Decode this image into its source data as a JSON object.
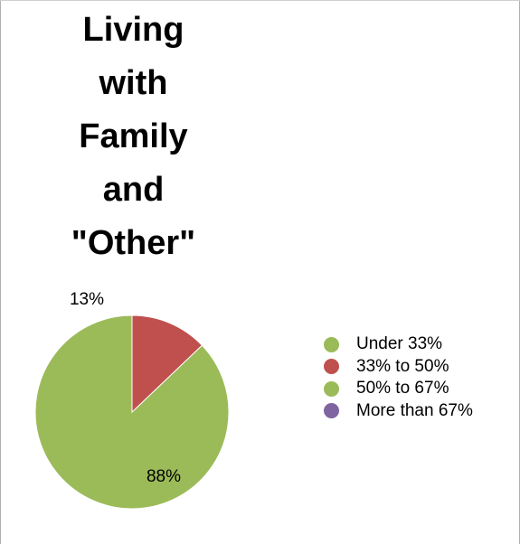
{
  "chart_data": {
    "type": "pie",
    "title_lines": [
      "Living",
      "with",
      "Family",
      "and",
      "\"Other\""
    ],
    "categories": [
      "Under 33%",
      "33% to 50%",
      "50% to 67%",
      "More than 67%"
    ],
    "values": [
      0.88,
      0.13,
      0,
      0
    ],
    "data_labels": [
      "88%",
      "13%",
      "",
      ""
    ],
    "colors": [
      "#9BBB59",
      "#C0504D",
      "#9BBB59",
      "#8064A2"
    ],
    "legend_position": "right"
  }
}
